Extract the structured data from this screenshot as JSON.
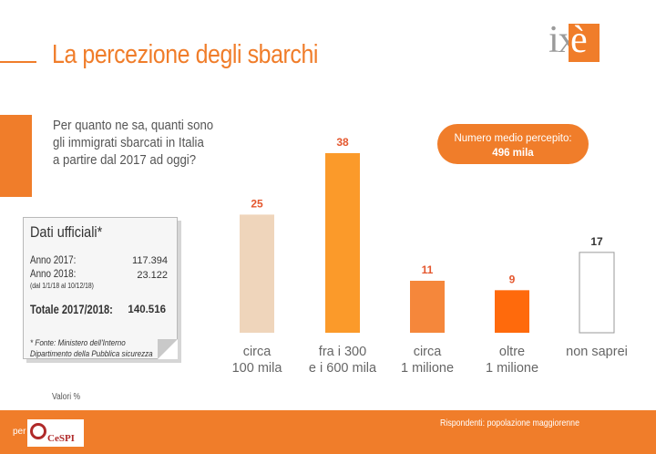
{
  "title": "La percezione degli sbarchi",
  "logo": {
    "text": "ix",
    "accent": "è"
  },
  "question": [
    "Per quanto ne sa, quanti sono",
    "gli immigrati sbarcati in Italia",
    "a partire dal 2017 ad oggi?"
  ],
  "average": {
    "label": "Numero medio percepito:",
    "value": "496 mila"
  },
  "official": {
    "title": "Dati ufficiali*",
    "rows": [
      {
        "label": "Anno 2017:",
        "value": "117.394"
      },
      {
        "label": "Anno 2018:",
        "value": "23.122"
      }
    ],
    "range_note": "(dal 1/1/18 al 10/12/18)",
    "total_label": "Totale 2017/2018:",
    "total_value": "140.516",
    "source": [
      "* Fonte: Ministero dell'Interno",
      "Dipartimento della Pubblica sicurezza"
    ]
  },
  "chart_data": {
    "type": "bar",
    "categories": [
      [
        "circa",
        "100 mila"
      ],
      [
        "fra i 300",
        "e i 600 mila"
      ],
      [
        "circa",
        "1 milione"
      ],
      [
        "oltre",
        "1 milione"
      ],
      [
        "non saprei"
      ]
    ],
    "values": [
      25,
      38,
      11,
      9,
      17
    ],
    "labels": [
      "25",
      "38",
      "11",
      "9",
      "17"
    ],
    "colors": [
      "#efd5bb",
      "#fb9a2a",
      "#f5873b",
      "#ff6a0c",
      "#ffffff"
    ],
    "label_color": "#e4572e",
    "unit_note": "Valori %"
  },
  "footer": {
    "per": "per",
    "partner": "CeSPI",
    "respondents": "Rispondenti: popolazione maggiorenne"
  },
  "colors": {
    "accent": "#f07d2a"
  }
}
